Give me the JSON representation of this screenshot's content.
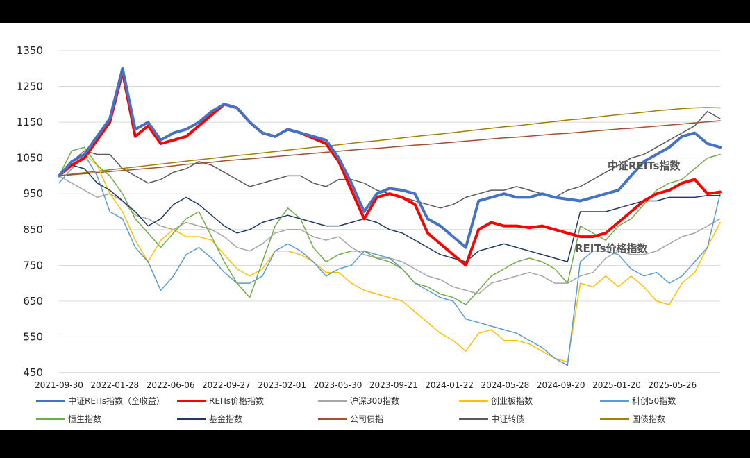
{
  "chart_data": {
    "type": "line",
    "ylim": [
      450,
      1350
    ],
    "yticks": [
      450,
      550,
      650,
      750,
      850,
      950,
      1050,
      1150,
      1250,
      1350
    ],
    "x_tick_labels": [
      "2021-09-30",
      "2022-01-28",
      "2022-06-06",
      "2022-09-27",
      "2023-02-01",
      "2023-05-30",
      "2023-09-21",
      "2024-01-22",
      "2024-05-28",
      "2024-09-20",
      "2025-01-20",
      "2025-05-26"
    ],
    "grid": true,
    "legend_position": "bottom",
    "annotations": [
      {
        "text": "中证REITs指数",
        "color": "#555555"
      },
      {
        "text": "REITs价格指数",
        "color": "#555555"
      }
    ],
    "series": [
      {
        "name": "中证REITs指数（全收益）",
        "color": "#4472C4",
        "width": 4,
        "values": [
          1000,
          1040,
          1060,
          1110,
          1160,
          1300,
          1130,
          1150,
          1100,
          1120,
          1130,
          1150,
          1180,
          1200,
          1190,
          1150,
          1120,
          1110,
          1130,
          1120,
          1110,
          1100,
          1050,
          980,
          900,
          950,
          965,
          960,
          950,
          880,
          860,
          830,
          800,
          930,
          940,
          950,
          940,
          940,
          950,
          940,
          935,
          930,
          940,
          950,
          960,
          1000,
          1040,
          1060,
          1080,
          1110,
          1120,
          1090,
          1080
        ]
      },
      {
        "name": "REITs价格指数",
        "color": "#FF0000",
        "width": 4,
        "values": [
          1000,
          1030,
          1050,
          1100,
          1150,
          1290,
          1110,
          1140,
          1090,
          1100,
          1110,
          1140,
          1170,
          1200,
          1190,
          1150,
          1120,
          1110,
          1130,
          1120,
          1105,
          1090,
          1040,
          960,
          880,
          940,
          950,
          940,
          920,
          840,
          810,
          780,
          750,
          850,
          870,
          860,
          860,
          855,
          860,
          850,
          840,
          830,
          830,
          840,
          870,
          900,
          930,
          950,
          960,
          980,
          990,
          950,
          955
        ]
      },
      {
        "name": "沪深300指数",
        "color": "#A5A5A5",
        "width": 1.5,
        "values": [
          1000,
          980,
          960,
          940,
          950,
          930,
          890,
          880,
          860,
          850,
          870,
          860,
          850,
          830,
          800,
          790,
          810,
          840,
          850,
          850,
          830,
          820,
          830,
          800,
          780,
          770,
          770,
          760,
          740,
          720,
          710,
          690,
          680,
          670,
          700,
          710,
          720,
          730,
          720,
          700,
          700,
          720,
          730,
          770,
          790,
          780,
          780,
          790,
          810,
          830,
          840,
          860,
          880
        ]
      },
      {
        "name": "创业板指数",
        "color": "#FFC000",
        "width": 1.5,
        "values": [
          1000,
          1040,
          1060,
          1030,
          950,
          900,
          820,
          760,
          820,
          850,
          830,
          830,
          820,
          780,
          740,
          720,
          740,
          790,
          790,
          780,
          760,
          730,
          730,
          700,
          680,
          670,
          660,
          650,
          620,
          590,
          560,
          540,
          510,
          560,
          570,
          540,
          540,
          530,
          510,
          490,
          480,
          700,
          690,
          720,
          690,
          720,
          690,
          650,
          640,
          700,
          730,
          800,
          870
        ]
      },
      {
        "name": "科创50指数",
        "color": "#5B9BD5",
        "width": 1.5,
        "values": [
          980,
          1020,
          1060,
          1000,
          900,
          880,
          800,
          760,
          680,
          720,
          780,
          800,
          770,
          730,
          700,
          700,
          720,
          790,
          810,
          790,
          760,
          720,
          740,
          750,
          790,
          780,
          770,
          740,
          700,
          680,
          660,
          650,
          600,
          590,
          580,
          570,
          560,
          540,
          520,
          490,
          470,
          760,
          790,
          790,
          780,
          740,
          720,
          730,
          700,
          720,
          760,
          800,
          950
        ]
      },
      {
        "name": "恒生指数",
        "color": "#70AD47",
        "width": 1.5,
        "values": [
          1000,
          1070,
          1080,
          1030,
          1000,
          950,
          880,
          840,
          800,
          840,
          880,
          900,
          830,
          760,
          700,
          660,
          760,
          860,
          910,
          880,
          800,
          760,
          780,
          790,
          790,
          770,
          760,
          740,
          700,
          690,
          670,
          660,
          640,
          680,
          720,
          740,
          760,
          770,
          760,
          740,
          700,
          860,
          840,
          820,
          860,
          880,
          920,
          960,
          980,
          990,
          1020,
          1050,
          1060
        ]
      },
      {
        "name": "基金指数",
        "color": "#203864",
        "width": 1.5,
        "values": [
          1000,
          1030,
          1020,
          980,
          960,
          930,
          900,
          860,
          880,
          920,
          940,
          920,
          890,
          860,
          840,
          850,
          870,
          880,
          890,
          880,
          870,
          860,
          860,
          870,
          880,
          870,
          850,
          840,
          820,
          800,
          780,
          770,
          760,
          790,
          800,
          810,
          800,
          790,
          780,
          770,
          760,
          900,
          900,
          900,
          910,
          920,
          930,
          930,
          940,
          940,
          940,
          945,
          945
        ]
      },
      {
        "name": "公司债指",
        "color": "#A0522D",
        "width": 1.5,
        "values": [
          1000,
          1003,
          1006,
          1009,
          1012,
          1015,
          1018,
          1021,
          1024,
          1028,
          1032,
          1035,
          1038,
          1042,
          1045,
          1048,
          1051,
          1054,
          1057,
          1060,
          1063,
          1066,
          1069,
          1072,
          1075,
          1077,
          1080,
          1083,
          1086,
          1088,
          1091,
          1094,
          1097,
          1100,
          1103,
          1106,
          1108,
          1111,
          1114,
          1117,
          1119,
          1122,
          1125,
          1128,
          1131,
          1133,
          1136,
          1139,
          1142,
          1145,
          1148,
          1151,
          1154
        ]
      },
      {
        "name": "中证转债",
        "color": "#595959",
        "width": 1.5,
        "values": [
          1000,
          1040,
          1070,
          1060,
          1060,
          1020,
          1000,
          980,
          990,
          1010,
          1020,
          1040,
          1030,
          1010,
          990,
          970,
          980,
          990,
          1000,
          1000,
          980,
          970,
          990,
          990,
          980,
          960,
          950,
          940,
          930,
          920,
          910,
          920,
          940,
          950,
          960,
          960,
          970,
          960,
          950,
          940,
          960,
          970,
          990,
          1010,
          1030,
          1050,
          1060,
          1080,
          1100,
          1120,
          1140,
          1180,
          1160
        ]
      },
      {
        "name": "国债指数",
        "color": "#A08000",
        "width": 1.5,
        "values": [
          1000,
          1005,
          1009,
          1013,
          1017,
          1021,
          1025,
          1029,
          1033,
          1037,
          1041,
          1045,
          1049,
          1053,
          1057,
          1060,
          1064,
          1068,
          1072,
          1076,
          1080,
          1083,
          1087,
          1091,
          1095,
          1098,
          1102,
          1106,
          1110,
          1114,
          1117,
          1121,
          1125,
          1129,
          1133,
          1137,
          1140,
          1144,
          1148,
          1152,
          1156,
          1159,
          1163,
          1167,
          1171,
          1174,
          1178,
          1182,
          1185,
          1188,
          1190,
          1191,
          1190
        ]
      }
    ]
  }
}
